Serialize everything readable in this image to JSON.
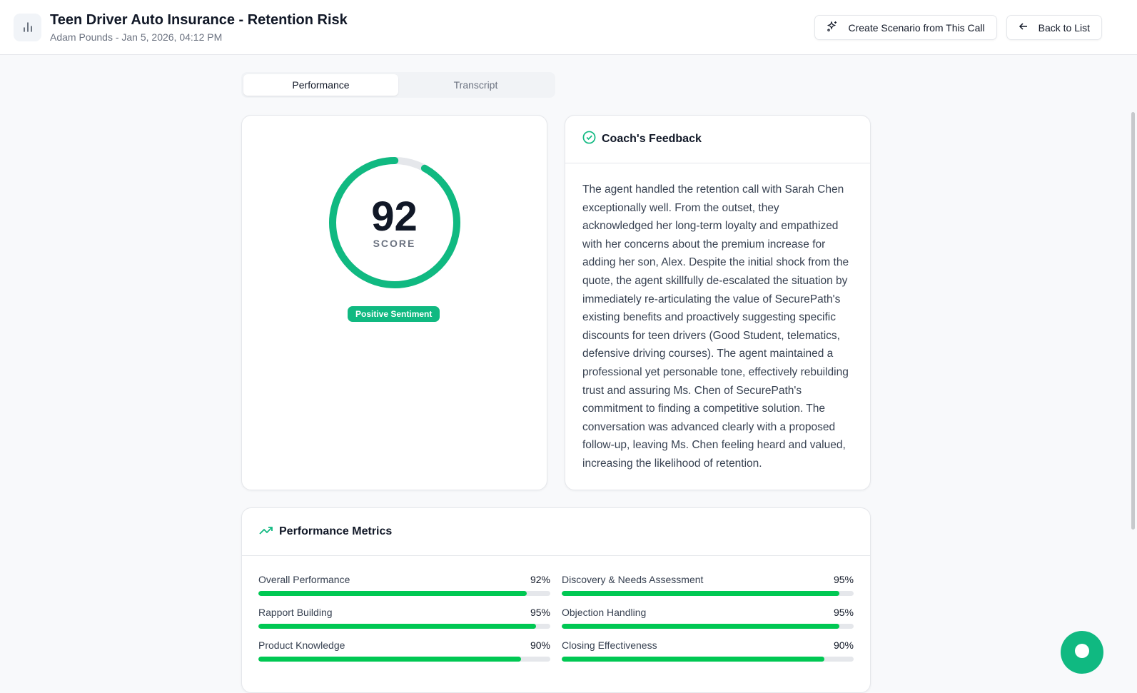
{
  "header": {
    "title": "Teen Driver Auto Insurance - Retention Risk",
    "subtitle": "Adam Pounds - Jan 5, 2026, 04:12 PM",
    "create_scenario": "Create Scenario from This Call",
    "back": "Back to List"
  },
  "tabs": [
    {
      "label": "Performance",
      "active": true
    },
    {
      "label": "Transcript",
      "active": false
    }
  ],
  "score": {
    "value": "92",
    "label": "SCORE",
    "percent": 92,
    "sentiment": "Positive Sentiment"
  },
  "feedback": {
    "title": "Coach's Feedback",
    "text": "The agent handled the retention call with Sarah Chen exceptionally well. From the outset, they acknowledged her long-term loyalty and empathized with her concerns about the premium increase for adding her son, Alex. Despite the initial shock from the quote, the agent skillfully de-escalated the situation by immediately re-articulating the value of SecurePath's existing benefits and proactively suggesting specific discounts for teen drivers (Good Student, telematics, defensive driving courses). The agent maintained a professional yet personable tone, effectively rebuilding trust and assuring Ms. Chen of SecurePath's commitment to finding a competitive solution. The conversation was advanced clearly with a proposed follow-up, leaving Ms. Chen feeling heard and valued, increasing the likelihood of retention."
  },
  "metrics": {
    "title": "Performance Metrics",
    "items": [
      {
        "label": "Overall Performance",
        "value": "92%",
        "percent": 92
      },
      {
        "label": "Discovery & Needs Assessment",
        "value": "95%",
        "percent": 95
      },
      {
        "label": "Rapport Building",
        "value": "95%",
        "percent": 95
      },
      {
        "label": "Objection Handling",
        "value": "95%",
        "percent": 95
      },
      {
        "label": "Product Knowledge",
        "value": "90%",
        "percent": 90
      },
      {
        "label": "Closing Effectiveness",
        "value": "90%",
        "percent": 90
      }
    ]
  },
  "colors": {
    "accent": "#10b981",
    "bar": "#00c853"
  }
}
